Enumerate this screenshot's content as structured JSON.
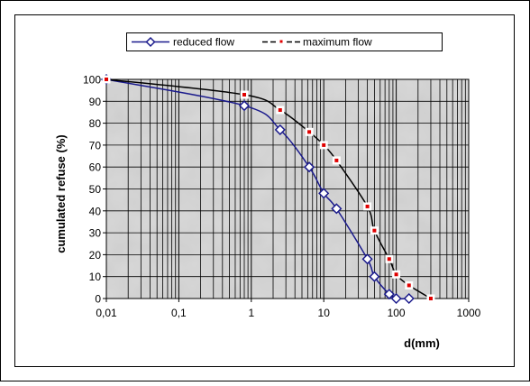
{
  "chart_data": {
    "type": "line",
    "xlabel": "d(mm)",
    "ylabel": "cumulated refuse (%)",
    "x_scale": "log",
    "xlim": [
      0.01,
      1000
    ],
    "ylim": [
      0,
      100
    ],
    "x_ticks": [
      "0,01",
      "0,1",
      "1",
      "10",
      "100",
      "1000"
    ],
    "y_ticks": [
      "0",
      "10",
      "20",
      "30",
      "40",
      "50",
      "60",
      "70",
      "80",
      "90",
      "100"
    ],
    "grid": true,
    "legend_position": "top",
    "plot_background": "grey textured",
    "series": [
      {
        "name": "reduced flow",
        "color": "#1a1a8c",
        "marker": "diamond",
        "points": [
          {
            "x": 0.01,
            "y": 100
          },
          {
            "x": 0.8,
            "y": 88
          },
          {
            "x": 2.5,
            "y": 77
          },
          {
            "x": 6.3,
            "y": 60
          },
          {
            "x": 10,
            "y": 48
          },
          {
            "x": 15,
            "y": 41
          },
          {
            "x": 40,
            "y": 18
          },
          {
            "x": 50,
            "y": 10
          },
          {
            "x": 80,
            "y": 2
          },
          {
            "x": 100,
            "y": 0
          },
          {
            "x": 150,
            "y": 0
          }
        ]
      },
      {
        "name": "maximum flow",
        "color": "#000000",
        "marker_color": "#e00000",
        "marker": "square",
        "points": [
          {
            "x": 0.01,
            "y": 100
          },
          {
            "x": 0.8,
            "y": 93
          },
          {
            "x": 2.5,
            "y": 86
          },
          {
            "x": 6.3,
            "y": 76
          },
          {
            "x": 10,
            "y": 70
          },
          {
            "x": 15,
            "y": 63
          },
          {
            "x": 40,
            "y": 42
          },
          {
            "x": 50,
            "y": 31
          },
          {
            "x": 80,
            "y": 18
          },
          {
            "x": 100,
            "y": 11
          },
          {
            "x": 150,
            "y": 6
          },
          {
            "x": 300,
            "y": 0
          }
        ]
      }
    ]
  }
}
